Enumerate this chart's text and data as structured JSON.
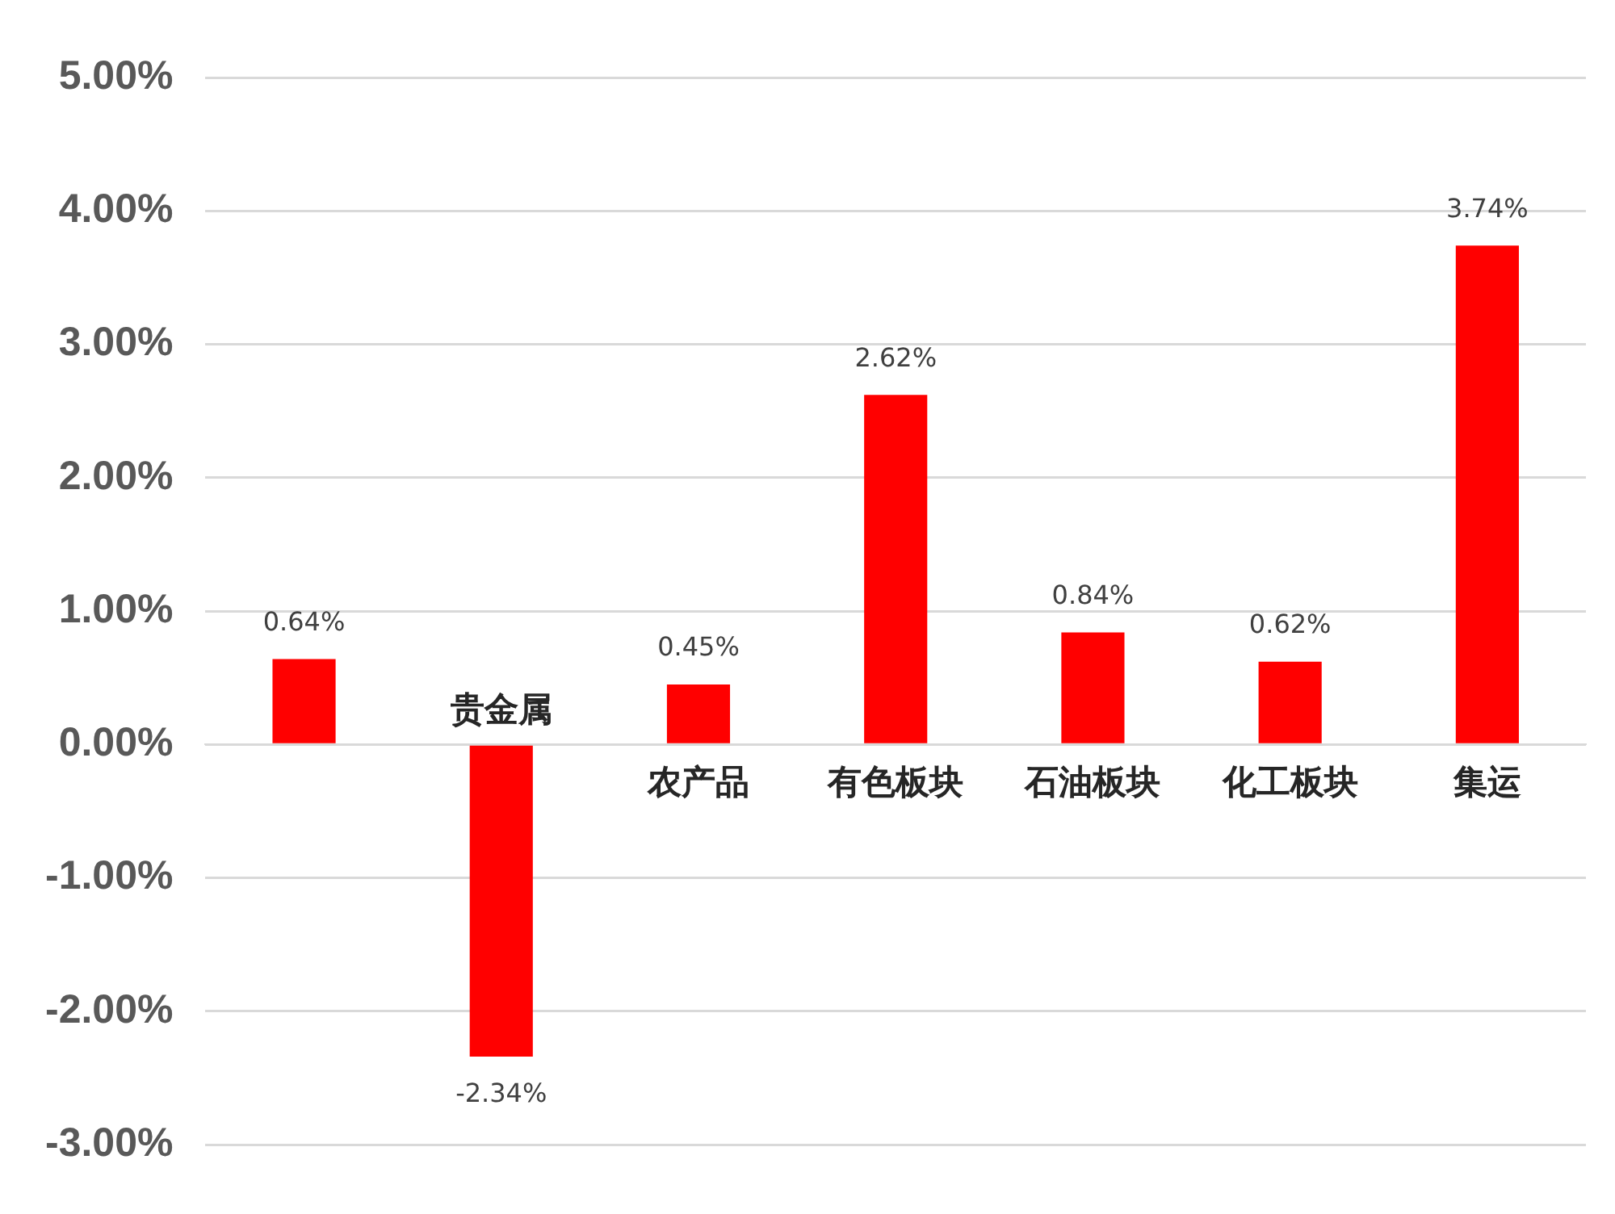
{
  "chart_data": {
    "type": "bar",
    "categories": [
      null,
      "贵金属",
      "农产品",
      "有色板块",
      "石油板块",
      "化工板块",
      "集运"
    ],
    "values": [
      0.64,
      -2.34,
      0.45,
      2.62,
      0.84,
      0.62,
      3.74
    ],
    "value_labels": [
      "0.64%",
      "-2.34%",
      "0.45%",
      "2.62%",
      "0.84%",
      "0.62%",
      "3.74%"
    ],
    "color": "#ff0000",
    "ylim": [
      -3,
      5
    ],
    "yticks": [
      {
        "value": -3,
        "label": "-3.00%"
      },
      {
        "value": -2,
        "label": "-2.00%"
      },
      {
        "value": -1,
        "label": "-1.00%"
      },
      {
        "value": 0,
        "label": "0.00%"
      },
      {
        "value": 1,
        "label": "1.00%"
      },
      {
        "value": 2,
        "label": "2.00%"
      },
      {
        "value": 3,
        "label": "3.00%"
      },
      {
        "value": 4,
        "label": "4.00%"
      },
      {
        "value": 5,
        "label": "5.00%"
      }
    ],
    "grid": "y",
    "legend": false
  }
}
